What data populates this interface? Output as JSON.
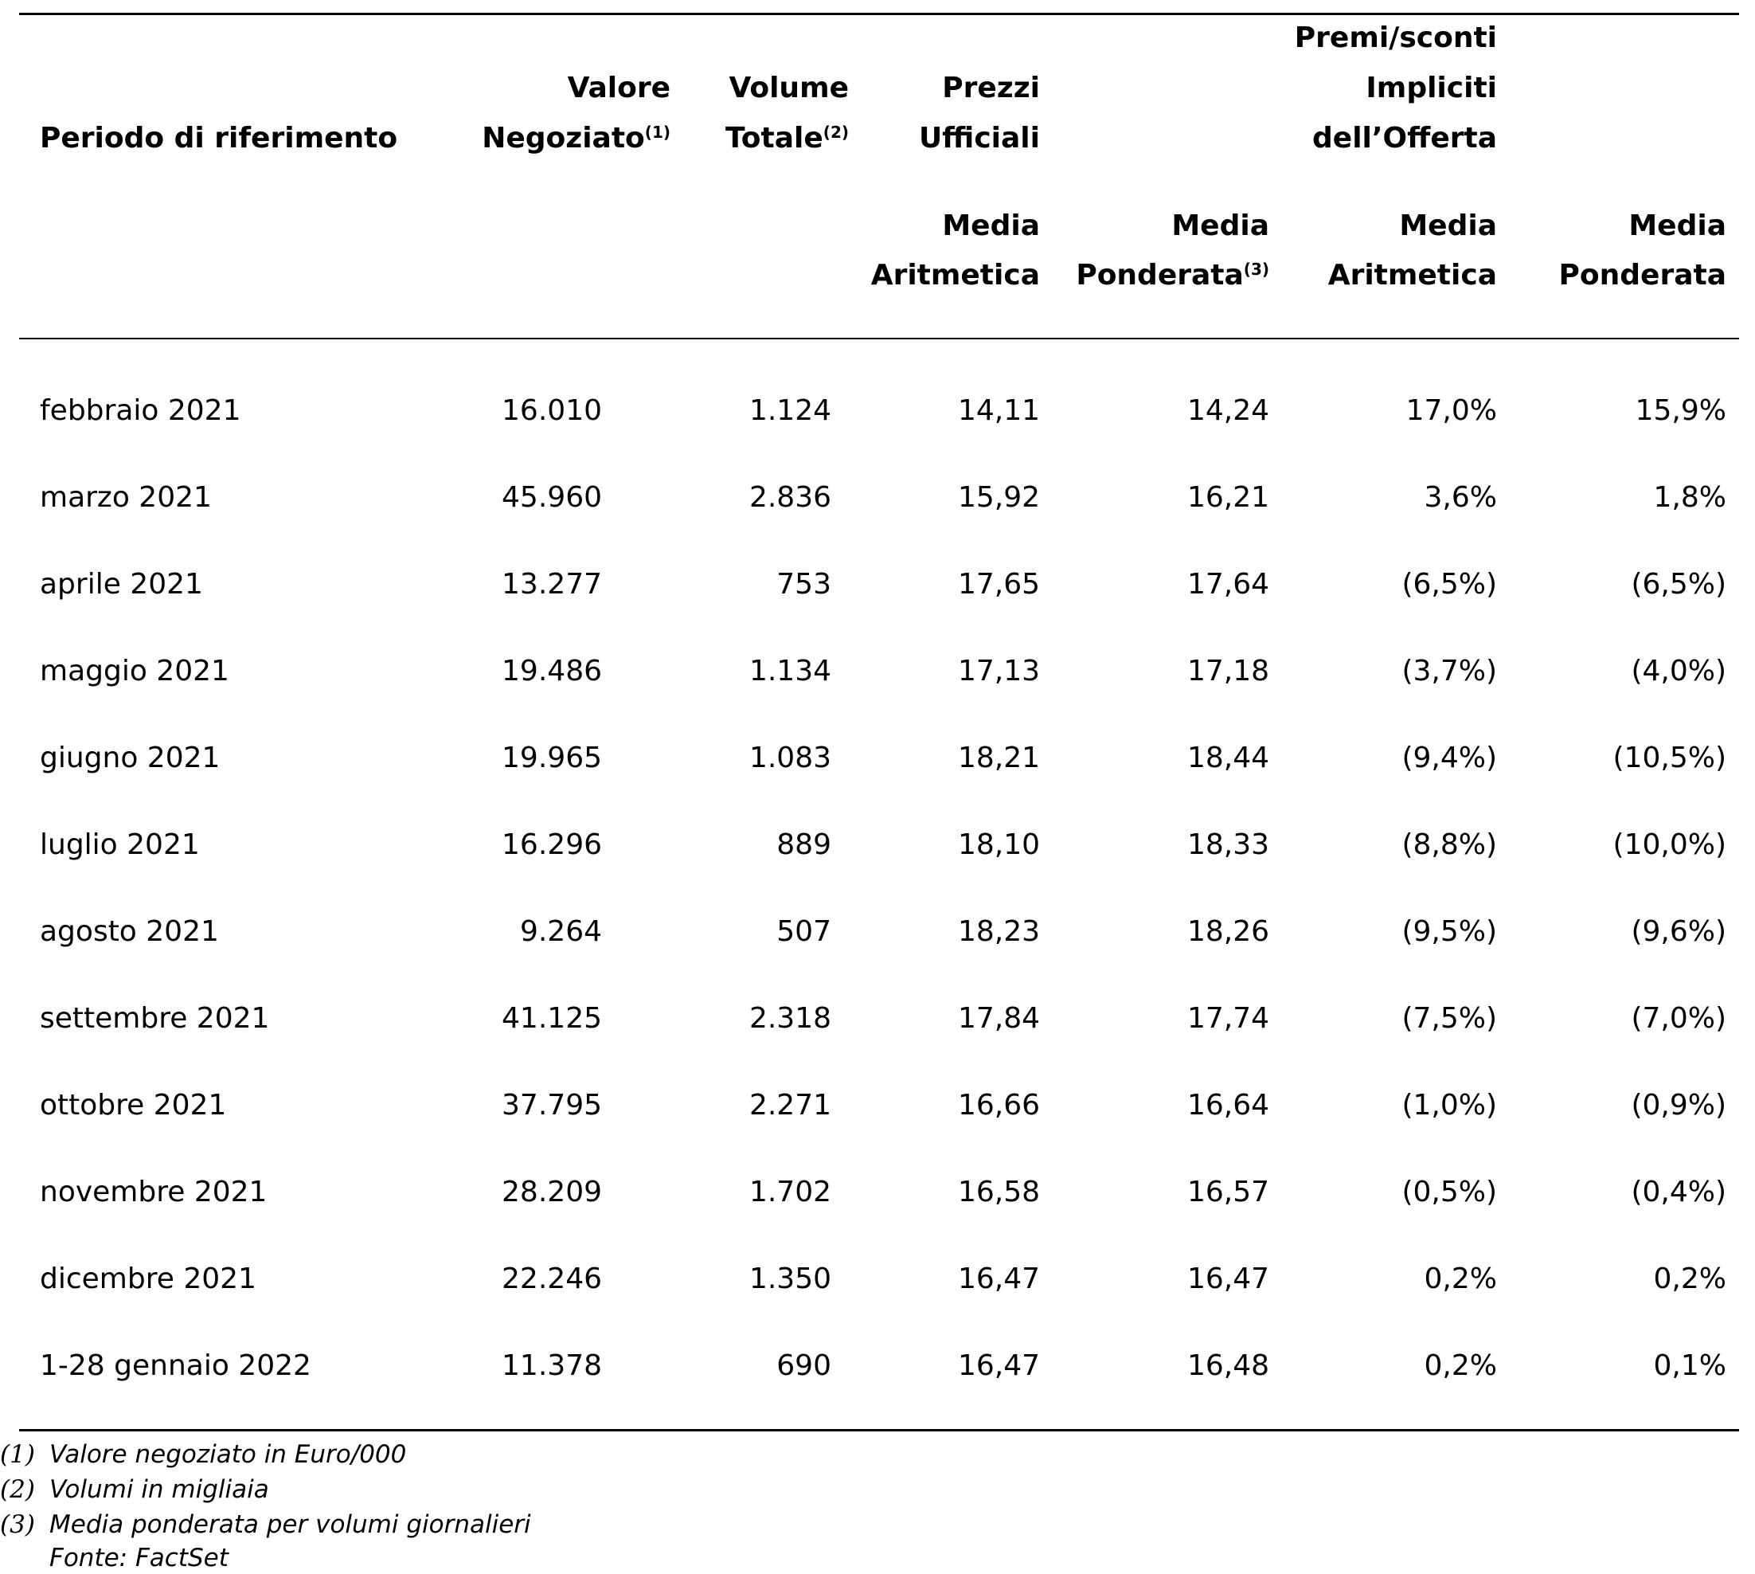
{
  "headers": {
    "period": "Periodo di riferimento",
    "valore_line1": "Valore",
    "valore_line2": "Negoziato",
    "valore_sup": "(1)",
    "volume_line1": "Volume",
    "volume_line2": "Totale",
    "volume_sup": "(2)",
    "prezzi_line1": "Prezzi",
    "prezzi_line2": "Ufficiali",
    "premi_line1": "Premi/sconti",
    "premi_line2": "Impliciti",
    "premi_line3": "dell’Offerta",
    "sub_aritmetica_1_line1": "Media",
    "sub_aritmetica_1_line2": "Aritmetica",
    "sub_ponderata_1_line1": "Media",
    "sub_ponderata_1_line2": "Ponderata",
    "sub_ponderata_1_sup": "(3)",
    "sub_aritmetica_2_line1": "Media",
    "sub_aritmetica_2_line2": "Aritmetica",
    "sub_ponderata_2_line1": "Media",
    "sub_ponderata_2_line2": "Ponderata"
  },
  "rows": [
    {
      "period": "febbraio 2021",
      "valore": "16.010",
      "volume": "1.124",
      "prezzo_aritm": "14,11",
      "prezzo_pond": "14,24",
      "premio_aritm": "17,0%",
      "premio_pond": "15,9%"
    },
    {
      "period": "marzo 2021",
      "valore": "45.960",
      "volume": "2.836",
      "prezzo_aritm": "15,92",
      "prezzo_pond": "16,21",
      "premio_aritm": "3,6%",
      "premio_pond": "1,8%"
    },
    {
      "period": "aprile 2021",
      "valore": "13.277",
      "volume": "753",
      "prezzo_aritm": "17,65",
      "prezzo_pond": "17,64",
      "premio_aritm": "(6,5%)",
      "premio_pond": "(6,5%)"
    },
    {
      "period": "maggio 2021",
      "valore": "19.486",
      "volume": "1.134",
      "prezzo_aritm": "17,13",
      "prezzo_pond": "17,18",
      "premio_aritm": "(3,7%)",
      "premio_pond": "(4,0%)"
    },
    {
      "period": "giugno 2021",
      "valore": "19.965",
      "volume": "1.083",
      "prezzo_aritm": "18,21",
      "prezzo_pond": "18,44",
      "premio_aritm": "(9,4%)",
      "premio_pond": "(10,5%)"
    },
    {
      "period": "luglio 2021",
      "valore": "16.296",
      "volume": "889",
      "prezzo_aritm": "18,10",
      "prezzo_pond": "18,33",
      "premio_aritm": "(8,8%)",
      "premio_pond": "(10,0%)"
    },
    {
      "period": "agosto 2021",
      "valore": "9.264",
      "volume": "507",
      "prezzo_aritm": "18,23",
      "prezzo_pond": "18,26",
      "premio_aritm": "(9,5%)",
      "premio_pond": "(9,6%)"
    },
    {
      "period": "settembre 2021",
      "valore": "41.125",
      "volume": "2.318",
      "prezzo_aritm": "17,84",
      "prezzo_pond": "17,74",
      "premio_aritm": "(7,5%)",
      "premio_pond": "(7,0%)"
    },
    {
      "period": "ottobre 2021",
      "valore": "37.795",
      "volume": "2.271",
      "prezzo_aritm": "16,66",
      "prezzo_pond": "16,64",
      "premio_aritm": "(1,0%)",
      "premio_pond": "(0,9%)"
    },
    {
      "period": "novembre 2021",
      "valore": "28.209",
      "volume": "1.702",
      "prezzo_aritm": "16,58",
      "prezzo_pond": "16,57",
      "premio_aritm": "(0,5%)",
      "premio_pond": "(0,4%)"
    },
    {
      "period": "dicembre 2021",
      "valore": "22.246",
      "volume": "1.350",
      "prezzo_aritm": "16,47",
      "prezzo_pond": "16,47",
      "premio_aritm": "0,2%",
      "premio_pond": "0,2%"
    },
    {
      "period": "1-28 gennaio 2022",
      "valore": "11.378",
      "volume": "690",
      "prezzo_aritm": "16,47",
      "prezzo_pond": "16,48",
      "premio_aritm": "0,2%",
      "premio_pond": "0,1%"
    }
  ],
  "footnotes": [
    {
      "marker": "(1)",
      "text": "Valore negoziato in Euro/000"
    },
    {
      "marker": "(2)",
      "text": "Volumi in migliaia"
    },
    {
      "marker": "(3)",
      "text": "Media ponderata per volumi giornalieri"
    }
  ],
  "source": "Fonte: FactSet"
}
